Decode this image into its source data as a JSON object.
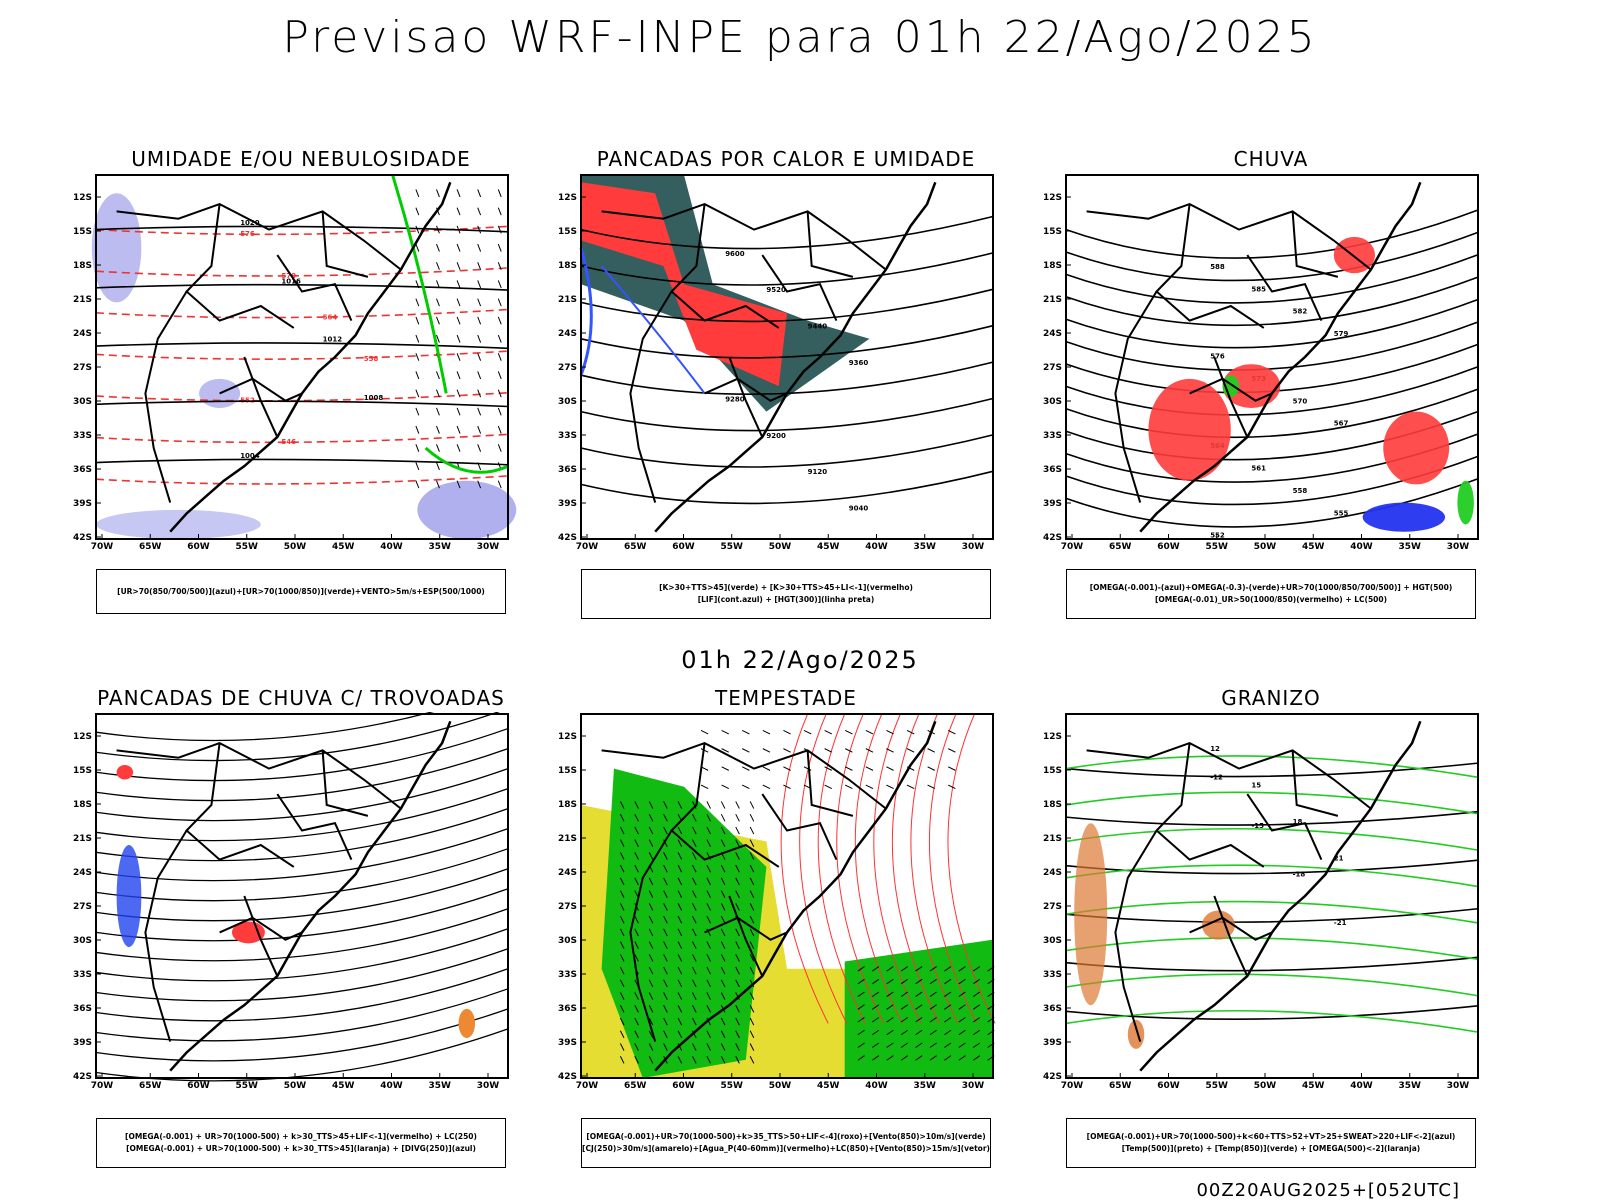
{
  "main_title": "Previsao WRF-INPE  para 01h 22/Ago/2025",
  "mid_title": "01h 22/Ago/2025",
  "footer": "00Z20AUG2025+[052UTC]",
  "lat_ticks": [
    "12S",
    "15S",
    "18S",
    "21S",
    "24S",
    "27S",
    "30S",
    "33S",
    "36S",
    "39S",
    "42S"
  ],
  "lon_ticks": [
    "70W",
    "65W",
    "60W",
    "55W",
    "50W",
    "45W",
    "40W",
    "35W",
    "30W"
  ],
  "panels": [
    {
      "title": "UMIDADE E/OU NEBULOSIDADE",
      "legend": [
        "[UR>70(850/700/500)](azul)+[UR>70(1000/850)](verde)+VENTO>5m/s+ESP(500/1000)"
      ],
      "colors": {
        "humid_high": "#8f8fe8",
        "humid_low": "#00cc00",
        "thickness": "#ee3333"
      },
      "contour_labels": [
        "1020",
        "1016",
        "1012",
        "1008",
        "1004",
        "576",
        "570",
        "564",
        "558",
        "552",
        "546"
      ]
    },
    {
      "title": "PANCADAS POR CALOR E UMIDADE",
      "legend": [
        "[K>30+TTS>45](verde) + [K>30+TTS>45+LI<-1](vermelho)",
        "[LIF](cont.azul) + [HGT(300)](linha preta)"
      ],
      "colors": {
        "instab": "#ff3b3b",
        "stable": "#1f4d4d",
        "lif": "#3355ff"
      },
      "contour_labels": [
        "9600",
        "9520",
        "9440",
        "9360",
        "9280",
        "9200",
        "9120",
        "9040"
      ]
    },
    {
      "title": "CHUVA",
      "legend": [
        "[OMEGA(-0.001)-(azul)+OMEGA(-0.3)-(verde)+UR>70(1000/850/700/500)] + HGT(500)",
        "[OMEGA(-0.01)_UR>50(1000/850)(vermelho) + LC(500)"
      ],
      "colors": {
        "rain": "#ff3b3b",
        "omega_blue": "#2233ee",
        "omega_green": "#22cc22"
      },
      "contour_labels": [
        "588",
        "585",
        "582",
        "579",
        "576",
        "573",
        "570",
        "567",
        "564",
        "561",
        "558",
        "555",
        "552"
      ]
    },
    {
      "title": "PANCADAS DE CHUVA C/ TROVOADAS",
      "legend": [
        "[OMEGA(-0.001) + UR>70(1000-500) + k>30_TTS>45+LIF<-1](vermelho) + LC(250)",
        "[OMEGA(-0.001) + UR>70(1000-500) + k>30_TTS>45](laranja) + [DIVG(250)](azul)"
      ],
      "colors": {
        "storm": "#ff3b3b",
        "orange": "#ee8833",
        "divg": "#2244ee"
      },
      "contour_labels": []
    },
    {
      "title": "TEMPESTADE",
      "legend": [
        "[OMEGA(-0.001)+UR>70(1000-500)+k>35_TTS>50+LIF<-4](roxo)+[Vento(850)>10m/s](verde)",
        "[CJ(250)>30m/s](amarelo)+[Agua_P(40-60mm)](vermelho)+LC(850)+[Vento(850)>15m/s](vetor)"
      ],
      "colors": {
        "jet": "#e6dd33",
        "wind": "#11bb11",
        "stream": "#ff3333"
      },
      "contour_labels": []
    },
    {
      "title": "GRANIZO",
      "legend": [
        "[OMEGA(-0.001)+UR>70(1000-500)+k<60+TTS>52+VT>25+SWEAT>220+LIF<-2](azul)",
        "[Temp(500)](preto) + [Temp(850)](verde) + [OMEGA(500)<-2](laranja)"
      ],
      "colors": {
        "t850": "#22cc22",
        "omega500": "#dd7733"
      },
      "contour_labels": [
        "12",
        "15",
        "18",
        "21",
        "-12",
        "-15",
        "-18",
        "-21"
      ]
    }
  ]
}
